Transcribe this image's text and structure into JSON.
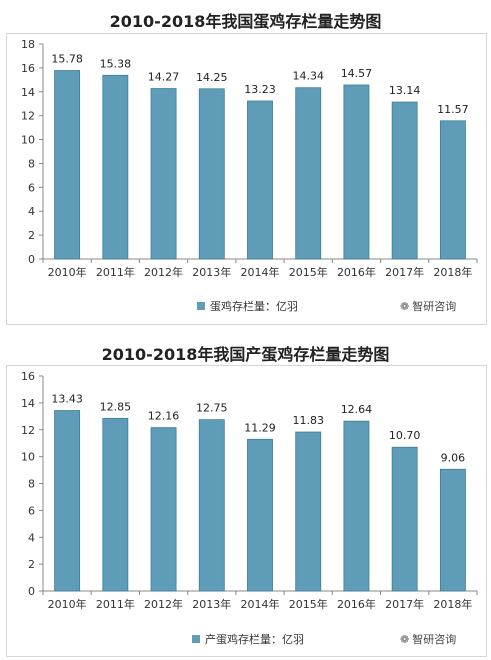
{
  "colors": {
    "bar": "#5e9cb8",
    "bar_edge": "#3f7d97",
    "axis": "#888888",
    "grid": "#d9d9d9"
  },
  "chart_data": [
    {
      "type": "bar",
      "title": "2010-2018年我国蛋鸡存栏量走势图",
      "categories": [
        "2010年",
        "2011年",
        "2012年",
        "2013年",
        "2014年",
        "2015年",
        "2016年",
        "2017年",
        "2018年"
      ],
      "series": [
        {
          "name": "蛋鸡存栏量：亿羽",
          "values": [
            15.78,
            15.38,
            14.27,
            14.25,
            13.23,
            14.34,
            14.57,
            13.14,
            11.57
          ],
          "labels": [
            "15.78",
            "15.38",
            "14.27",
            "14.25",
            "13.23",
            "14.34",
            "14.57",
            "13.14",
            "11.57"
          ]
        }
      ],
      "yticks": [
        "0",
        "2",
        "4",
        "6",
        "8",
        "10",
        "12",
        "14",
        "16",
        "18"
      ],
      "ylim": [
        0,
        18
      ],
      "legend": "bottom-center",
      "grid": false
    },
    {
      "type": "bar",
      "title": "2010-2018年我国产蛋鸡存栏量走势图",
      "categories": [
        "2010年",
        "2011年",
        "2012年",
        "2013年",
        "2014年",
        "2015年",
        "2016年",
        "2017年",
        "2018年"
      ],
      "series": [
        {
          "name": "产蛋鸡存栏量：亿羽",
          "values": [
            13.43,
            12.85,
            12.16,
            12.75,
            11.29,
            11.83,
            12.64,
            10.7,
            9.06
          ],
          "labels": [
            "13.43",
            "12.85",
            "12.16",
            "12.75",
            "11.29",
            "11.83",
            "12.64",
            "10.70",
            "9.06"
          ]
        }
      ],
      "yticks": [
        "0",
        "2",
        "4",
        "6",
        "8",
        "10",
        "12",
        "14",
        "16"
      ],
      "ylim": [
        0,
        16
      ],
      "legend": "bottom-center",
      "grid": false
    }
  ],
  "watermark": {
    "icon": "wechat-icon",
    "text": "智研咨询"
  }
}
